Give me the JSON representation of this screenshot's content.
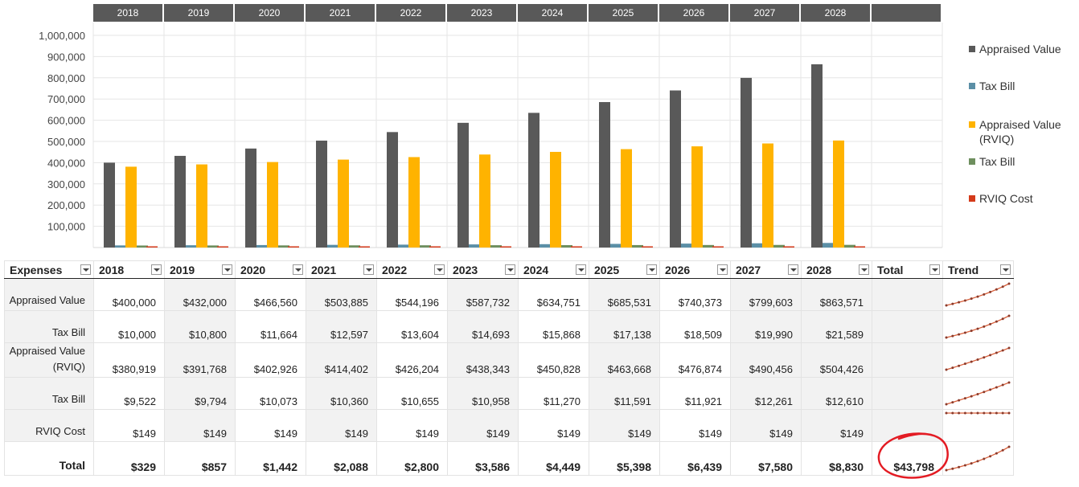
{
  "chart_data": {
    "type": "bar",
    "categories": [
      "2018",
      "2019",
      "2020",
      "2021",
      "2022",
      "2023",
      "2024",
      "2025",
      "2026",
      "2027",
      "2028"
    ],
    "series": [
      {
        "name": "Appraised Value",
        "color": "#595959",
        "values": [
          400000,
          432000,
          466560,
          503885,
          544196,
          587732,
          634751,
          685531,
          740373,
          799603,
          863571
        ]
      },
      {
        "name": "Tax Bill",
        "color": "#5b8fa6",
        "values": [
          10000,
          10800,
          11664,
          12597,
          13604,
          14693,
          15868,
          17138,
          18509,
          19990,
          21589
        ]
      },
      {
        "name": "Appraised Value (RVIQ)",
        "color": "#ffb300",
        "values": [
          380919,
          391768,
          402926,
          414402,
          426204,
          438343,
          450828,
          463668,
          476874,
          490456,
          504426
        ]
      },
      {
        "name": "Tax Bill",
        "color": "#6e8f5e",
        "values": [
          9522,
          9794,
          10073,
          10360,
          10655,
          10958,
          11270,
          11591,
          11921,
          12261,
          12610
        ]
      },
      {
        "name": "RVIQ Cost",
        "color": "#d43a1a",
        "values": [
          149,
          149,
          149,
          149,
          149,
          149,
          149,
          149,
          149,
          149,
          149
        ]
      }
    ],
    "yticks": [
      "100,000",
      "200,000",
      "300,000",
      "400,000",
      "500,000",
      "600,000",
      "700,000",
      "800,000",
      "900,000",
      "1,000,000"
    ],
    "ylim": [
      0,
      1000000
    ],
    "grid": true,
    "legend": "right"
  },
  "table": {
    "headers": [
      "Expenses",
      "2018",
      "2019",
      "2020",
      "2021",
      "2022",
      "2023",
      "2024",
      "2025",
      "2026",
      "2027",
      "2028",
      "Total",
      "Trend"
    ],
    "rows": [
      {
        "label": "Appraised Value",
        "cells": [
          "$400,000",
          "$432,000",
          "$466,560",
          "$503,885",
          "$544,196",
          "$587,732",
          "$634,751",
          "$685,531",
          "$740,373",
          "$799,603",
          "$863,571"
        ],
        "total": ""
      },
      {
        "label": "Tax Bill",
        "cells": [
          "$10,000",
          "$10,800",
          "$11,664",
          "$12,597",
          "$13,604",
          "$14,693",
          "$15,868",
          "$17,138",
          "$18,509",
          "$19,990",
          "$21,589"
        ],
        "total": ""
      },
      {
        "label": "Appraised Value (RVIQ)",
        "cells": [
          "$380,919",
          "$391,768",
          "$402,926",
          "$414,402",
          "$426,204",
          "$438,343",
          "$450,828",
          "$463,668",
          "$476,874",
          "$490,456",
          "$504,426"
        ],
        "total": ""
      },
      {
        "label": "Tax Bill",
        "cells": [
          "$9,522",
          "$9,794",
          "$10,073",
          "$10,360",
          "$10,655",
          "$10,958",
          "$11,270",
          "$11,591",
          "$11,921",
          "$12,261",
          "$12,610"
        ],
        "total": ""
      },
      {
        "label": "RVIQ Cost",
        "cells": [
          "$149",
          "$149",
          "$149",
          "$149",
          "$149",
          "$149",
          "$149",
          "$149",
          "$149",
          "$149",
          "$149"
        ],
        "total": ""
      }
    ],
    "total_row": {
      "label": "Total",
      "cells": [
        "$329",
        "$857",
        "$1,442",
        "$2,088",
        "$2,800",
        "$3,586",
        "$4,449",
        "$5,398",
        "$6,439",
        "$7,580",
        "$8,830"
      ],
      "total": "$43,798"
    },
    "trend_values": [
      [
        400000,
        432000,
        466560,
        503885,
        544196,
        587732,
        634751,
        685531,
        740373,
        799603,
        863571
      ],
      [
        10000,
        10800,
        11664,
        12597,
        13604,
        14693,
        15868,
        17138,
        18509,
        19990,
        21589
      ],
      [
        380919,
        391768,
        402926,
        414402,
        426204,
        438343,
        450828,
        463668,
        476874,
        490456,
        504426
      ],
      [
        9522,
        9794,
        10073,
        10360,
        10655,
        10958,
        11270,
        11591,
        11921,
        12261,
        12610
      ],
      [
        149,
        149,
        149,
        149,
        149,
        149,
        149,
        149,
        149,
        149,
        149
      ],
      [
        329,
        857,
        1442,
        2088,
        2800,
        3586,
        4449,
        5398,
        6439,
        7580,
        8830
      ]
    ]
  },
  "colors": {
    "header": "#595959",
    "shade": "#f2f2f2",
    "sparkline": "#d9603b",
    "sparkline_marker": "#8b3a2a",
    "annotation": "#e31b23"
  }
}
